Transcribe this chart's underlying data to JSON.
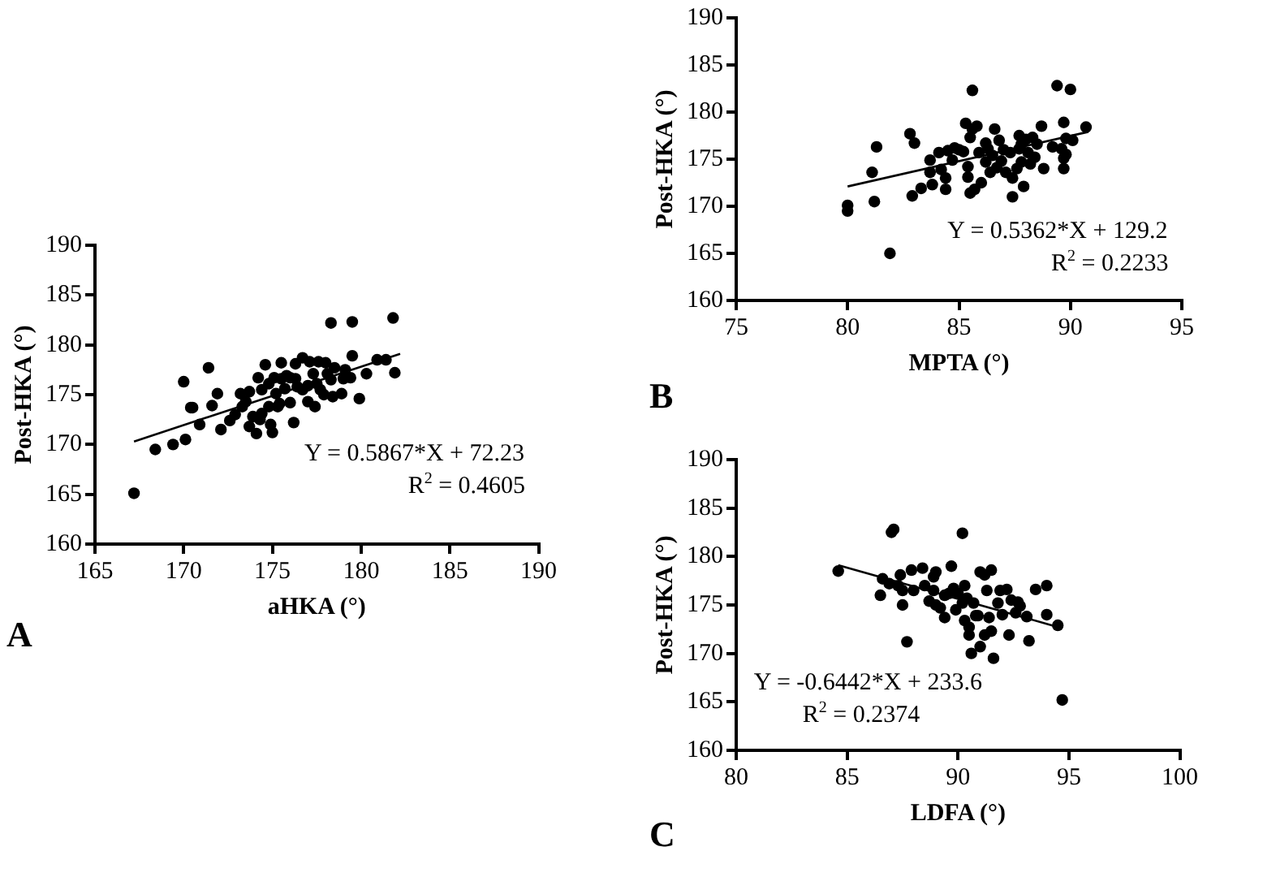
{
  "chart_data": [
    {
      "type": "scatter",
      "title": "A",
      "xlabel": "aHKA (°)",
      "ylabel": "Post-HKA (°)",
      "xlim": [
        165,
        190
      ],
      "xticks": [
        165,
        170,
        175,
        180,
        185,
        190
      ],
      "ylim": [
        160,
        190
      ],
      "yticks": [
        160,
        165,
        170,
        175,
        180,
        185,
        190
      ],
      "grid": false,
      "legend": false,
      "marker": "circle",
      "annotations": [
        "Y = 0.5867*X + 72.23",
        "R$^{2}$ = 0.4605"
      ],
      "series": [
        {
          "type": "scatter",
          "color": "#000000",
          "x": [
            167.2,
            168.4,
            169.4,
            170.1,
            170.0,
            170.4,
            170.5,
            170.9,
            171.4,
            171.6,
            171.9,
            172.1,
            172.6,
            172.9,
            173.2,
            173.3,
            173.5,
            173.7,
            173.7,
            173.9,
            174.1,
            174.2,
            174.3,
            174.4,
            174.4,
            174.6,
            174.8,
            174.8,
            174.9,
            175.0,
            175.1,
            175.2,
            175.3,
            175.5,
            175.4,
            175.5,
            175.7,
            175.8,
            176.0,
            176.0,
            176.2,
            176.3,
            176.3,
            176.4,
            176.7,
            176.7,
            177.0,
            177.0,
            177.1,
            177.3,
            177.4,
            177.5,
            177.6,
            177.7,
            177.9,
            178.0,
            178.1,
            178.3,
            178.3,
            178.4,
            178.5,
            178.9,
            179.0,
            179.1,
            179.5,
            179.5,
            179.4,
            179.9,
            180.3,
            180.9,
            181.4,
            181.8,
            181.9
          ],
          "values": [
            165.1,
            169.5,
            170.0,
            170.5,
            176.3,
            173.7,
            173.7,
            172.0,
            177.7,
            173.9,
            175.1,
            171.5,
            172.4,
            173.0,
            175.1,
            173.8,
            174.3,
            175.3,
            171.8,
            172.8,
            171.1,
            176.7,
            172.5,
            173.1,
            175.5,
            178.0,
            173.8,
            176.1,
            172.0,
            171.2,
            176.7,
            175.1,
            173.8,
            176.6,
            174.1,
            178.2,
            175.6,
            176.9,
            176.7,
            174.2,
            172.2,
            176.6,
            178.1,
            175.8,
            175.5,
            178.7,
            174.3,
            175.9,
            178.3,
            177.1,
            173.8,
            176.1,
            178.3,
            175.5,
            175.0,
            178.2,
            177.1,
            182.2,
            176.5,
            174.8,
            177.7,
            175.1,
            176.6,
            177.5,
            182.3,
            178.9,
            176.7,
            174.6,
            177.1,
            178.5,
            178.5,
            182.7,
            177.2
          ]
        },
        {
          "type": "line",
          "color": "#000000",
          "marker": "none",
          "line_style": "solid",
          "x": [
            167.2,
            182.2
          ],
          "values": [
            170.3,
            179.1
          ]
        }
      ]
    },
    {
      "type": "scatter",
      "title": "B",
      "xlabel": "MPTA (°)",
      "ylabel": "Post-HKA (°)",
      "xlim": [
        75,
        95
      ],
      "xticks": [
        75,
        80,
        85,
        90,
        95
      ],
      "ylim": [
        160,
        190
      ],
      "yticks": [
        160,
        165,
        170,
        175,
        180,
        185,
        190
      ],
      "grid": false,
      "legend": false,
      "marker": "circle",
      "annotations": [
        "Y = 0.5362*X + 129.2",
        "R$^{2}$ = 0.2233"
      ],
      "series": [
        {
          "type": "scatter",
          "color": "#000000",
          "x": [
            80.0,
            80.0,
            81.1,
            81.2,
            81.3,
            81.9,
            82.8,
            83.0,
            82.9,
            83.3,
            83.7,
            83.7,
            83.8,
            84.1,
            84.2,
            84.4,
            84.4,
            84.5,
            84.7,
            84.8,
            85.0,
            85.2,
            85.3,
            85.4,
            85.4,
            85.5,
            85.5,
            85.6,
            85.6,
            85.7,
            85.8,
            85.9,
            86.0,
            86.2,
            86.2,
            86.3,
            86.4,
            86.5,
            86.6,
            86.7,
            86.8,
            86.9,
            87.0,
            87.1,
            87.3,
            87.4,
            87.4,
            87.6,
            87.7,
            87.7,
            87.8,
            87.8,
            87.9,
            88.0,
            88.1,
            88.2,
            88.3,
            88.4,
            88.5,
            88.7,
            88.8,
            89.2,
            89.4,
            89.6,
            89.7,
            89.7,
            89.7,
            89.8,
            89.8,
            90.0,
            90.1,
            90.7
          ],
          "values": [
            170.1,
            169.5,
            173.6,
            170.5,
            176.3,
            165.0,
            177.7,
            176.7,
            171.1,
            171.9,
            174.9,
            173.6,
            172.3,
            175.7,
            173.9,
            173.0,
            171.8,
            175.9,
            174.9,
            176.2,
            176.0,
            175.8,
            178.8,
            173.1,
            174.2,
            171.4,
            177.3,
            178.2,
            182.3,
            171.8,
            178.5,
            175.7,
            172.5,
            174.7,
            176.7,
            176.1,
            173.6,
            175.4,
            178.2,
            174.1,
            177.0,
            174.8,
            176.0,
            173.6,
            175.7,
            173.0,
            171.0,
            174.0,
            176.1,
            177.5,
            174.7,
            176.6,
            172.1,
            177.1,
            175.7,
            174.5,
            177.3,
            175.2,
            176.6,
            178.5,
            174.0,
            176.3,
            182.8,
            176.1,
            178.9,
            175.1,
            174.0,
            177.2,
            175.5,
            182.4,
            177.0,
            178.4
          ]
        },
        {
          "type": "line",
          "color": "#000000",
          "marker": "none",
          "line_style": "solid",
          "x": [
            80.0,
            90.8
          ],
          "values": [
            172.1,
            177.9
          ]
        }
      ]
    },
    {
      "type": "scatter",
      "title": "C",
      "xlabel": "LDFA (°)",
      "ylabel": "Post-HKA (°)",
      "xlim": [
        80,
        100
      ],
      "xticks": [
        80,
        85,
        90,
        95,
        100
      ],
      "ylim": [
        160,
        190
      ],
      "yticks": [
        160,
        165,
        170,
        175,
        180,
        185,
        190
      ],
      "grid": false,
      "legend": false,
      "marker": "circle",
      "annotations": [
        "Y = -0.6442*X + 233.6",
        "R$^{2}$ = 0.2374"
      ],
      "series": [
        {
          "type": "scatter",
          "color": "#000000",
          "x": [
            84.6,
            86.5,
            86.6,
            87.0,
            87.1,
            86.9,
            87.3,
            87.4,
            87.5,
            87.5,
            87.7,
            87.9,
            88.0,
            88.4,
            88.5,
            88.7,
            88.9,
            89.0,
            88.9,
            89.0,
            89.2,
            89.4,
            89.4,
            89.6,
            89.7,
            89.8,
            89.9,
            90.0,
            90.2,
            90.2,
            90.3,
            90.3,
            90.4,
            90.5,
            90.5,
            90.6,
            90.7,
            90.8,
            90.9,
            91.0,
            91.0,
            91.2,
            91.2,
            91.3,
            91.4,
            91.5,
            91.5,
            91.6,
            91.8,
            91.9,
            92.0,
            92.2,
            92.3,
            92.4,
            92.6,
            92.7,
            92.8,
            93.1,
            93.2,
            93.5,
            94.0,
            94.0,
            94.5,
            94.7
          ],
          "values": [
            178.5,
            176.0,
            177.7,
            182.5,
            182.8,
            177.2,
            177.0,
            178.1,
            176.5,
            175.0,
            171.2,
            178.6,
            176.5,
            178.8,
            177.0,
            175.4,
            177.9,
            178.4,
            176.5,
            175.0,
            174.7,
            176.0,
            173.7,
            176.2,
            179.0,
            176.7,
            174.5,
            176.2,
            182.4,
            175.2,
            173.4,
            177.0,
            175.7,
            172.7,
            171.9,
            170.0,
            175.2,
            173.9,
            173.9,
            178.4,
            170.7,
            171.9,
            178.1,
            176.5,
            173.7,
            178.6,
            172.3,
            169.5,
            175.2,
            176.5,
            174.0,
            176.6,
            171.9,
            175.5,
            174.2,
            175.3,
            174.9,
            173.8,
            171.3,
            176.6,
            177.0,
            174.0,
            172.9,
            165.2
          ]
        },
        {
          "type": "line",
          "color": "#000000",
          "marker": "none",
          "line_style": "solid",
          "x": [
            84.6,
            94.7
          ],
          "values": [
            179.1,
            172.6
          ]
        }
      ]
    }
  ]
}
